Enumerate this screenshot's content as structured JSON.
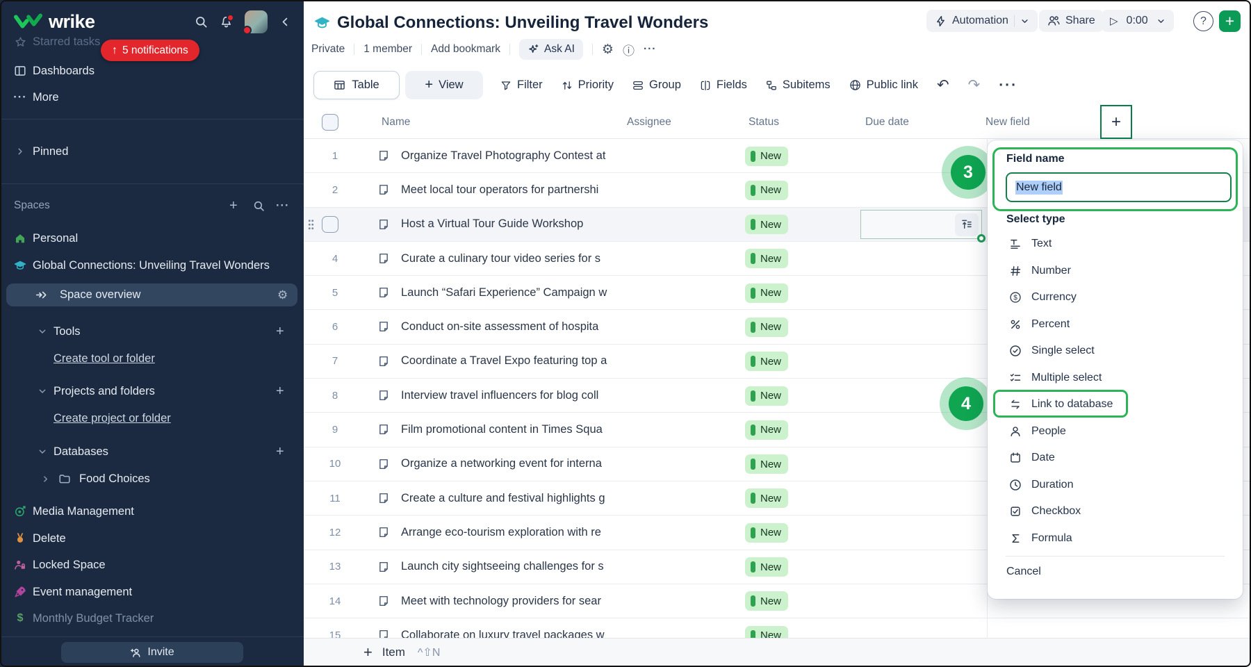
{
  "sidebar": {
    "logo_text": "wrike",
    "notifications_pill": "5 notifications",
    "starred_tasks": "Starred tasks",
    "dashboards": "Dashboards",
    "more": "More",
    "pinned": "Pinned",
    "spaces_header": "Spaces",
    "personal": "Personal",
    "global_space": "Global Connections: Unveiling Travel Wonders",
    "space_overview": "Space overview",
    "tools": "Tools",
    "create_tool": "Create tool or folder",
    "projects_folders": "Projects and folders",
    "create_project": "Create project or folder",
    "databases": "Databases",
    "food_choices": "Food Choices",
    "media_management": "Media Management",
    "delete_space": "Delete",
    "locked_space": "Locked Space",
    "event_management": "Event management",
    "budget_tracker": "Monthly Budget Tracker",
    "invite": "Invite"
  },
  "header": {
    "title": "Global Connections: Unveiling Travel Wonders",
    "privacy": "Private",
    "members": "1 member",
    "add_bookmark": "Add bookmark",
    "ask_ai": "Ask AI",
    "automation": "Automation",
    "share": "Share",
    "timer": "0:00"
  },
  "toolbar": {
    "table": "Table",
    "view": "View",
    "filter": "Filter",
    "priority": "Priority",
    "group": "Group",
    "fields": "Fields",
    "subitems": "Subitems",
    "public_link": "Public link"
  },
  "table": {
    "columns": [
      "Name",
      "Assignee",
      "Status",
      "Due date",
      "New field"
    ],
    "status_label": "New",
    "hovered_row": 3,
    "rows": [
      {
        "num": 1,
        "name": "Organize Travel Photography Contest at"
      },
      {
        "num": 2,
        "name": "Meet local tour operators for partnershi"
      },
      {
        "num": 3,
        "name": "Host a Virtual Tour Guide Workshop"
      },
      {
        "num": 4,
        "name": "Curate a culinary tour video series for s"
      },
      {
        "num": 5,
        "name": "Launch “Safari Experience” Campaign w"
      },
      {
        "num": 6,
        "name": "Conduct on-site assessment of hospita"
      },
      {
        "num": 7,
        "name": "Coordinate a Travel Expo featuring top a"
      },
      {
        "num": 8,
        "name": "Interview travel influencers for blog coll"
      },
      {
        "num": 9,
        "name": "Film promotional content in Times Squa"
      },
      {
        "num": 10,
        "name": "Organize a networking event for interna"
      },
      {
        "num": 11,
        "name": "Create a culture and festival highlights g"
      },
      {
        "num": 12,
        "name": "Arrange eco-tourism exploration with re"
      },
      {
        "num": 13,
        "name": "Launch city sightseeing challenges for s"
      },
      {
        "num": 14,
        "name": "Meet with technology providers for sear"
      },
      {
        "num": 15,
        "name": "Collaborate on luxury travel packages w"
      }
    ]
  },
  "footer": {
    "add_item": "Item",
    "shortcut": "^⇧N"
  },
  "popup": {
    "field_name_label": "Field name",
    "field_value": "New field",
    "select_type_label": "Select type",
    "types": [
      {
        "label": "Text",
        "icon": "text-icon"
      },
      {
        "label": "Number",
        "icon": "number-icon"
      },
      {
        "label": "Currency",
        "icon": "currency-icon"
      },
      {
        "label": "Percent",
        "icon": "percent-icon"
      },
      {
        "label": "Single select",
        "icon": "single-select-icon"
      },
      {
        "label": "Multiple select",
        "icon": "multiple-select-icon"
      },
      {
        "label": "Link to database",
        "icon": "link-to-database-icon"
      },
      {
        "label": "People",
        "icon": "people-icon"
      },
      {
        "label": "Date",
        "icon": "date-icon"
      },
      {
        "label": "Duration",
        "icon": "duration-icon"
      },
      {
        "label": "Checkbox",
        "icon": "checkbox-icon"
      },
      {
        "label": "Formula",
        "icon": "formula-icon"
      }
    ],
    "cancel": "Cancel"
  },
  "annotations": {
    "step_3": "3",
    "step_4": "4"
  },
  "colors": {
    "brand_green": "#0c9b57",
    "annotation_green": "#2cb457",
    "alert_red": "#e3262b",
    "status_badge_bg": "#ccf2cd",
    "status_badge_bar": "#2fa24f",
    "sidebar_bg": "#1b2a40"
  }
}
